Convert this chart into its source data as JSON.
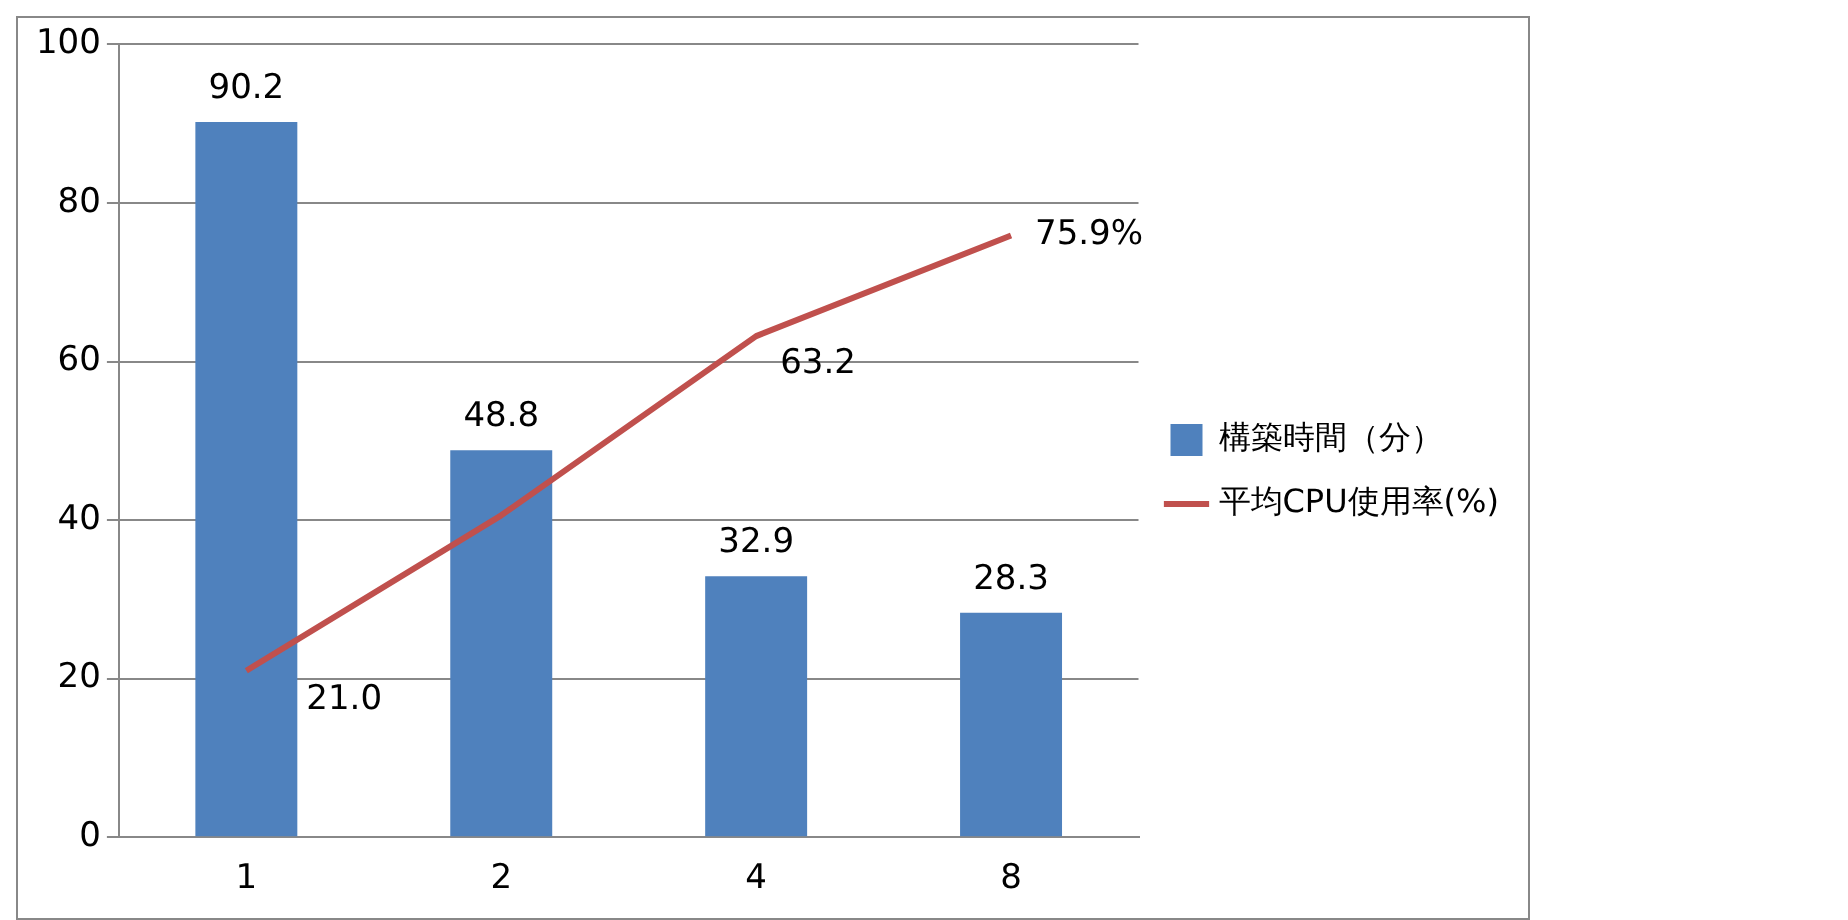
{
  "chart_data": {
    "type": "bar",
    "categories": [
      "1",
      "2",
      "4",
      "8"
    ],
    "ylim": [
      0,
      100
    ],
    "yticks": [
      0,
      20,
      40,
      60,
      80,
      100
    ],
    "grid": "y",
    "legend": "right",
    "series": [
      {
        "name": "構築時間（分）",
        "color": "#4f81bd",
        "values": [
          90.2,
          48.8,
          32.9,
          28.3
        ],
        "value_labels": [
          "90.2",
          "48.8",
          "32.9",
          "28.3"
        ]
      },
      {
        "name": "平均CPU使用率(%)",
        "type": "line",
        "color": "#c0504d",
        "values": [
          21.0,
          40.6,
          63.2,
          75.9
        ],
        "value_labels": [
          "21.0",
          null,
          "63.2",
          "75.9%"
        ]
      }
    ]
  }
}
